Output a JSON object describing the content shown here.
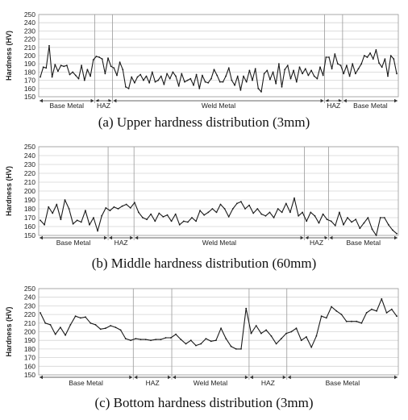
{
  "chart_data": [
    {
      "type": "line",
      "caption": "(a)  Upper hardness distribution (3mm)",
      "ylabel": "Hardness (HV)",
      "ylim": [
        150,
        250
      ],
      "yticks": [
        150,
        160,
        170,
        180,
        190,
        200,
        210,
        220,
        230,
        240,
        250
      ],
      "grid": true,
      "regions": [
        {
          "label": "Base Metal",
          "from": 0,
          "to": 0.156
        },
        {
          "label": "HAZ",
          "from": 0.156,
          "to": 0.205
        },
        {
          "label": "Weld Metal",
          "from": 0.205,
          "to": 0.795
        },
        {
          "label": "HAZ",
          "from": 0.795,
          "to": 0.845
        },
        {
          "label": "Base Metal",
          "from": 0.845,
          "to": 1
        }
      ],
      "series": [
        {
          "values": [
            174,
            186,
            185,
            212,
            174,
            189,
            181,
            188,
            187,
            188,
            177,
            180,
            176,
            172,
            188,
            170,
            183,
            175,
            195,
            199,
            198,
            196,
            178,
            197,
            187,
            185,
            176,
            192,
            183,
            162,
            160,
            174,
            167,
            174,
            177,
            170,
            175,
            167,
            180,
            168,
            170,
            175,
            165,
            178,
            172,
            180,
            175,
            163,
            178,
            168,
            170,
            172,
            164,
            177,
            160,
            176,
            168,
            167,
            172,
            183,
            176,
            168,
            168,
            175,
            185,
            170,
            164,
            175,
            158,
            175,
            168,
            182,
            170,
            184,
            160,
            156,
            178,
            182,
            171,
            180,
            166,
            190,
            162,
            183,
            188,
            172,
            182,
            168,
            186,
            178,
            184,
            176,
            182,
            175,
            172,
            186,
            176,
            198,
            198,
            184,
            202,
            190,
            188,
            178,
            188,
            175,
            190,
            178,
            184,
            190,
            200,
            198,
            203,
            196,
            207,
            191,
            186,
            196,
            175,
            200,
            196,
            178
          ]
        }
      ]
    },
    {
      "type": "line",
      "caption": "(b)  Middle hardness distribution (60mm)",
      "ylabel": "Hardness (HV)",
      "ylim": [
        150,
        250
      ],
      "yticks": [
        150,
        160,
        170,
        180,
        190,
        200,
        210,
        220,
        230,
        240,
        250
      ],
      "grid": true,
      "regions": [
        {
          "label": "Base Metal",
          "from": 0,
          "to": 0.193
        },
        {
          "label": "HAZ",
          "from": 0.193,
          "to": 0.265
        },
        {
          "label": "Weld Metal",
          "from": 0.265,
          "to": 0.739
        },
        {
          "label": "HAZ",
          "from": 0.739,
          "to": 0.806
        },
        {
          "label": "Base Metal",
          "from": 0.806,
          "to": 1
        }
      ],
      "series": [
        {
          "values": [
            167,
            162,
            182,
            175,
            185,
            168,
            190,
            180,
            163,
            167,
            165,
            178,
            162,
            170,
            155,
            172,
            181,
            178,
            182,
            180,
            183,
            185,
            181,
            187,
            176,
            170,
            168,
            174,
            166,
            175,
            171,
            173,
            166,
            174,
            162,
            166,
            165,
            170,
            166,
            178,
            173,
            176,
            180,
            176,
            185,
            180,
            171,
            180,
            186,
            188,
            180,
            184,
            175,
            180,
            174,
            172,
            176,
            170,
            180,
            176,
            186,
            176,
            192,
            172,
            176,
            166,
            176,
            172,
            164,
            174,
            168,
            166,
            161,
            176,
            162,
            170,
            165,
            168,
            158,
            164,
            170,
            157,
            150,
            170,
            170,
            162,
            156,
            152
          ]
        }
      ]
    },
    {
      "type": "line",
      "caption": "(c)  Bottom hardness distribution (3mm)",
      "ylabel": "Hardness (HV)",
      "ylim": [
        150,
        250
      ],
      "yticks": [
        150,
        160,
        170,
        180,
        190,
        200,
        210,
        220,
        230,
        240,
        250
      ],
      "grid": true,
      "regions": [
        {
          "label": "Base Metal",
          "from": 0,
          "to": 0.263
        },
        {
          "label": "HAZ",
          "from": 0.263,
          "to": 0.37
        },
        {
          "label": "Weld Metal",
          "from": 0.37,
          "to": 0.585
        },
        {
          "label": "HAZ",
          "from": 0.585,
          "to": 0.69
        },
        {
          "label": "Base Metal",
          "from": 0.69,
          "to": 1
        }
      ],
      "series": [
        {
          "values": [
            222,
            210,
            208,
            197,
            205,
            196,
            208,
            218,
            216,
            217,
            210,
            208,
            203,
            204,
            207,
            205,
            202,
            192,
            190,
            192,
            191,
            191,
            190,
            191,
            191,
            193,
            193,
            197,
            191,
            186,
            190,
            184,
            186,
            192,
            189,
            190,
            204,
            192,
            183,
            180,
            180,
            227,
            198,
            207,
            198,
            202,
            195,
            186,
            192,
            198,
            200,
            204,
            190,
            194,
            182,
            195,
            218,
            216,
            229,
            224,
            220,
            212,
            212,
            212,
            210,
            222,
            226,
            224,
            238,
            222,
            226,
            218
          ]
        }
      ]
    }
  ]
}
